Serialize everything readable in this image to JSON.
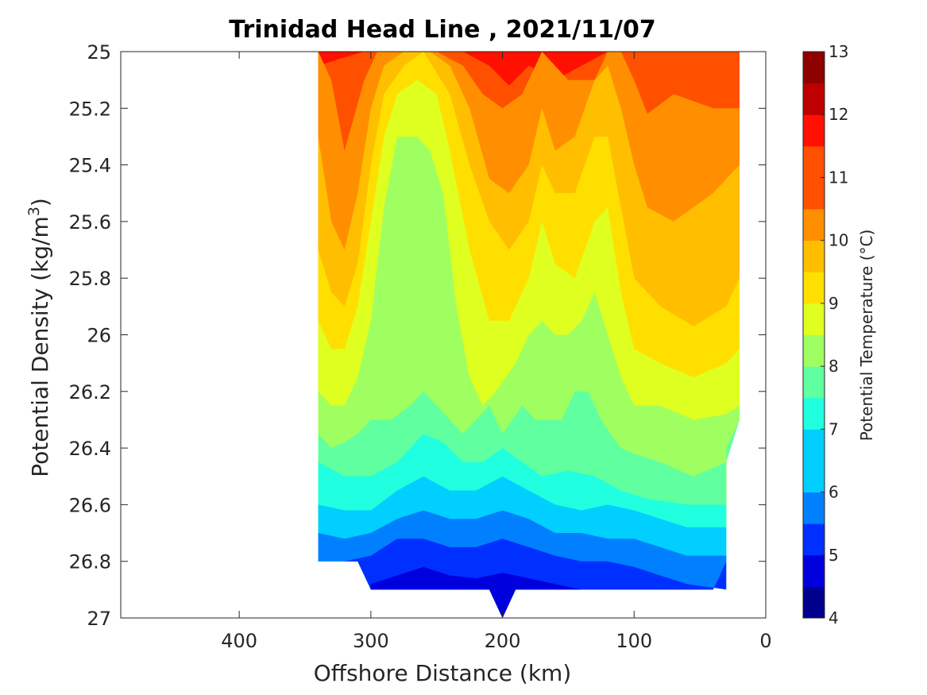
{
  "chart_data": {
    "type": "filled-contour",
    "title": "Trinidad Head Line , 2021/11/07",
    "xlabel": "Offshore Distance (km)",
    "ylabel_main": "Potential Density (kg/m",
    "ylabel_sup": "3",
    "ylabel_tail": ")",
    "xlim": [
      490,
      0
    ],
    "xticks": [
      "400",
      "300",
      "200",
      "100",
      "0"
    ],
    "xtick_values": [
      400,
      300,
      200,
      100,
      0
    ],
    "ylim": [
      25,
      27
    ],
    "yticks": [
      "25",
      "25.2",
      "25.4",
      "25.6",
      "25.8",
      "26",
      "26.2",
      "26.4",
      "26.6",
      "26.8",
      "27"
    ],
    "ytick_values": [
      25,
      25.2,
      25.4,
      25.6,
      25.8,
      26,
      26.2,
      26.4,
      26.6,
      26.8,
      27
    ],
    "colorbar": {
      "label": "Potential Temperature (°C)",
      "range": [
        4,
        13
      ],
      "ticks": [
        "4",
        "5",
        "6",
        "7",
        "8",
        "9",
        "10",
        "11",
        "12",
        "13"
      ],
      "colors": [
        "#00008f",
        "#0000df",
        "#0030ff",
        "#0080ff",
        "#00cfff",
        "#20ffdf",
        "#60ff9f",
        "#9fff60",
        "#dfff20",
        "#ffdf00",
        "#ffbf00",
        "#ff8f00",
        "#ff5000",
        "#ff1000",
        "#bf0000",
        "#8f0000"
      ]
    },
    "contour_levels_degC": [
      4.5,
      5,
      5.5,
      6,
      6.5,
      7,
      7.5,
      8,
      8.5,
      9,
      9.5,
      10,
      10.5,
      11,
      11.5,
      12,
      12.5,
      13
    ],
    "data_extent_km": [
      340,
      20
    ],
    "observed_temperature_profiles": [
      {
        "km": 330,
        "sigma": [
          25.0,
          25.6,
          25.9,
          26.1,
          26.3,
          26.5,
          26.7,
          26.8
        ],
        "temp": [
          11.5,
          11.0,
          10.0,
          9.5,
          9.0,
          8.0,
          6.5,
          6.0
        ]
      },
      {
        "km": 265,
        "sigma": [
          25.0,
          25.3,
          25.8,
          26.2,
          26.5,
          26.7,
          26.9
        ],
        "temp": [
          9.5,
          8.5,
          8.5,
          8.0,
          7.0,
          6.0,
          5.0
        ]
      },
      {
        "km": 200,
        "sigma": [
          25.0,
          25.5,
          25.8,
          26.2,
          26.5,
          26.7,
          26.9
        ],
        "temp": [
          11.5,
          10.5,
          9.0,
          8.5,
          7.0,
          6.0,
          5.0
        ]
      },
      {
        "km": 140,
        "sigma": [
          25.0,
          25.5,
          25.9,
          26.2,
          26.5,
          26.7,
          26.9
        ],
        "temp": [
          11.5,
          9.5,
          8.5,
          7.5,
          7.0,
          6.0,
          5.5
        ]
      },
      {
        "km": 60,
        "sigma": [
          25.0,
          25.5,
          25.9,
          26.1,
          26.3,
          26.5,
          26.7,
          26.9
        ],
        "temp": [
          12.0,
          11.0,
          10.5,
          10.0,
          9.0,
          8.0,
          7.0,
          6.0
        ]
      }
    ]
  }
}
